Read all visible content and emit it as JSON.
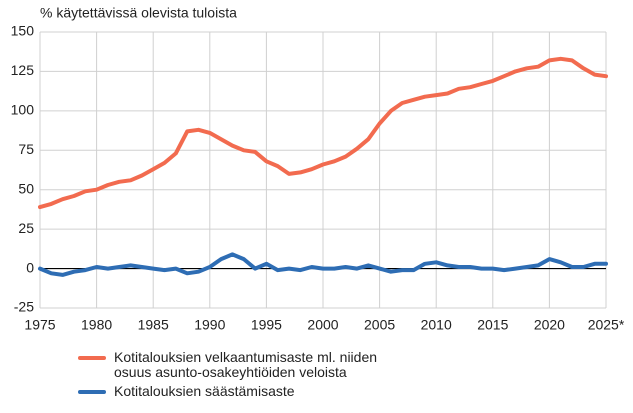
{
  "chart_data": {
    "type": "line",
    "title": "% käytettävissä olevista tuloista",
    "x": [
      1975,
      1976,
      1977,
      1978,
      1979,
      1980,
      1981,
      1982,
      1983,
      1984,
      1985,
      1986,
      1987,
      1988,
      1989,
      1990,
      1991,
      1992,
      1993,
      1994,
      1995,
      1996,
      1997,
      1998,
      1999,
      2000,
      2001,
      2002,
      2003,
      2004,
      2005,
      2006,
      2007,
      2008,
      2009,
      2010,
      2011,
      2012,
      2013,
      2014,
      2015,
      2016,
      2017,
      2018,
      2019,
      2020,
      2021,
      2022,
      2023,
      2024,
      2025
    ],
    "series": [
      {
        "name": "Kotitalouksien velkaantumisaste ml. niiden osuus asunto-osakeyhtiöiden veloista",
        "color": "#f26b4f",
        "values": [
          39,
          41,
          44,
          46,
          49,
          50,
          53,
          55,
          56,
          59,
          63,
          67,
          73,
          87,
          88,
          86,
          82,
          78,
          75,
          74,
          68,
          65,
          60,
          61,
          63,
          66,
          68,
          71,
          76,
          82,
          92,
          100,
          105,
          107,
          109,
          110,
          111,
          114,
          115,
          117,
          119,
          122,
          125,
          127,
          128,
          132,
          133,
          132,
          127,
          123,
          122
        ]
      },
      {
        "name": "Kotitalouksien säästämisaste",
        "color": "#2e6db4",
        "values": [
          0,
          -3,
          -4,
          -2,
          -1,
          1,
          0,
          1,
          2,
          1,
          0,
          -1,
          0,
          -3,
          -2,
          1,
          6,
          9,
          6,
          0,
          3,
          -1,
          0,
          -1,
          1,
          0,
          0,
          1,
          0,
          2,
          0,
          -2,
          -1,
          -1,
          3,
          4,
          2,
          1,
          1,
          0,
          0,
          -1,
          0,
          1,
          2,
          6,
          4,
          1,
          1,
          3,
          3
        ]
      }
    ],
    "xlim": [
      1975,
      2025
    ],
    "xticks": [
      1975,
      1980,
      1985,
      1990,
      1995,
      2000,
      2005,
      2010,
      2015,
      2020,
      {
        "value": 2025,
        "label": "2025*"
      }
    ],
    "ylim": [
      -25,
      150
    ],
    "yticks": [
      -25,
      0,
      25,
      50,
      75,
      100,
      125,
      150
    ],
    "grid": true
  }
}
